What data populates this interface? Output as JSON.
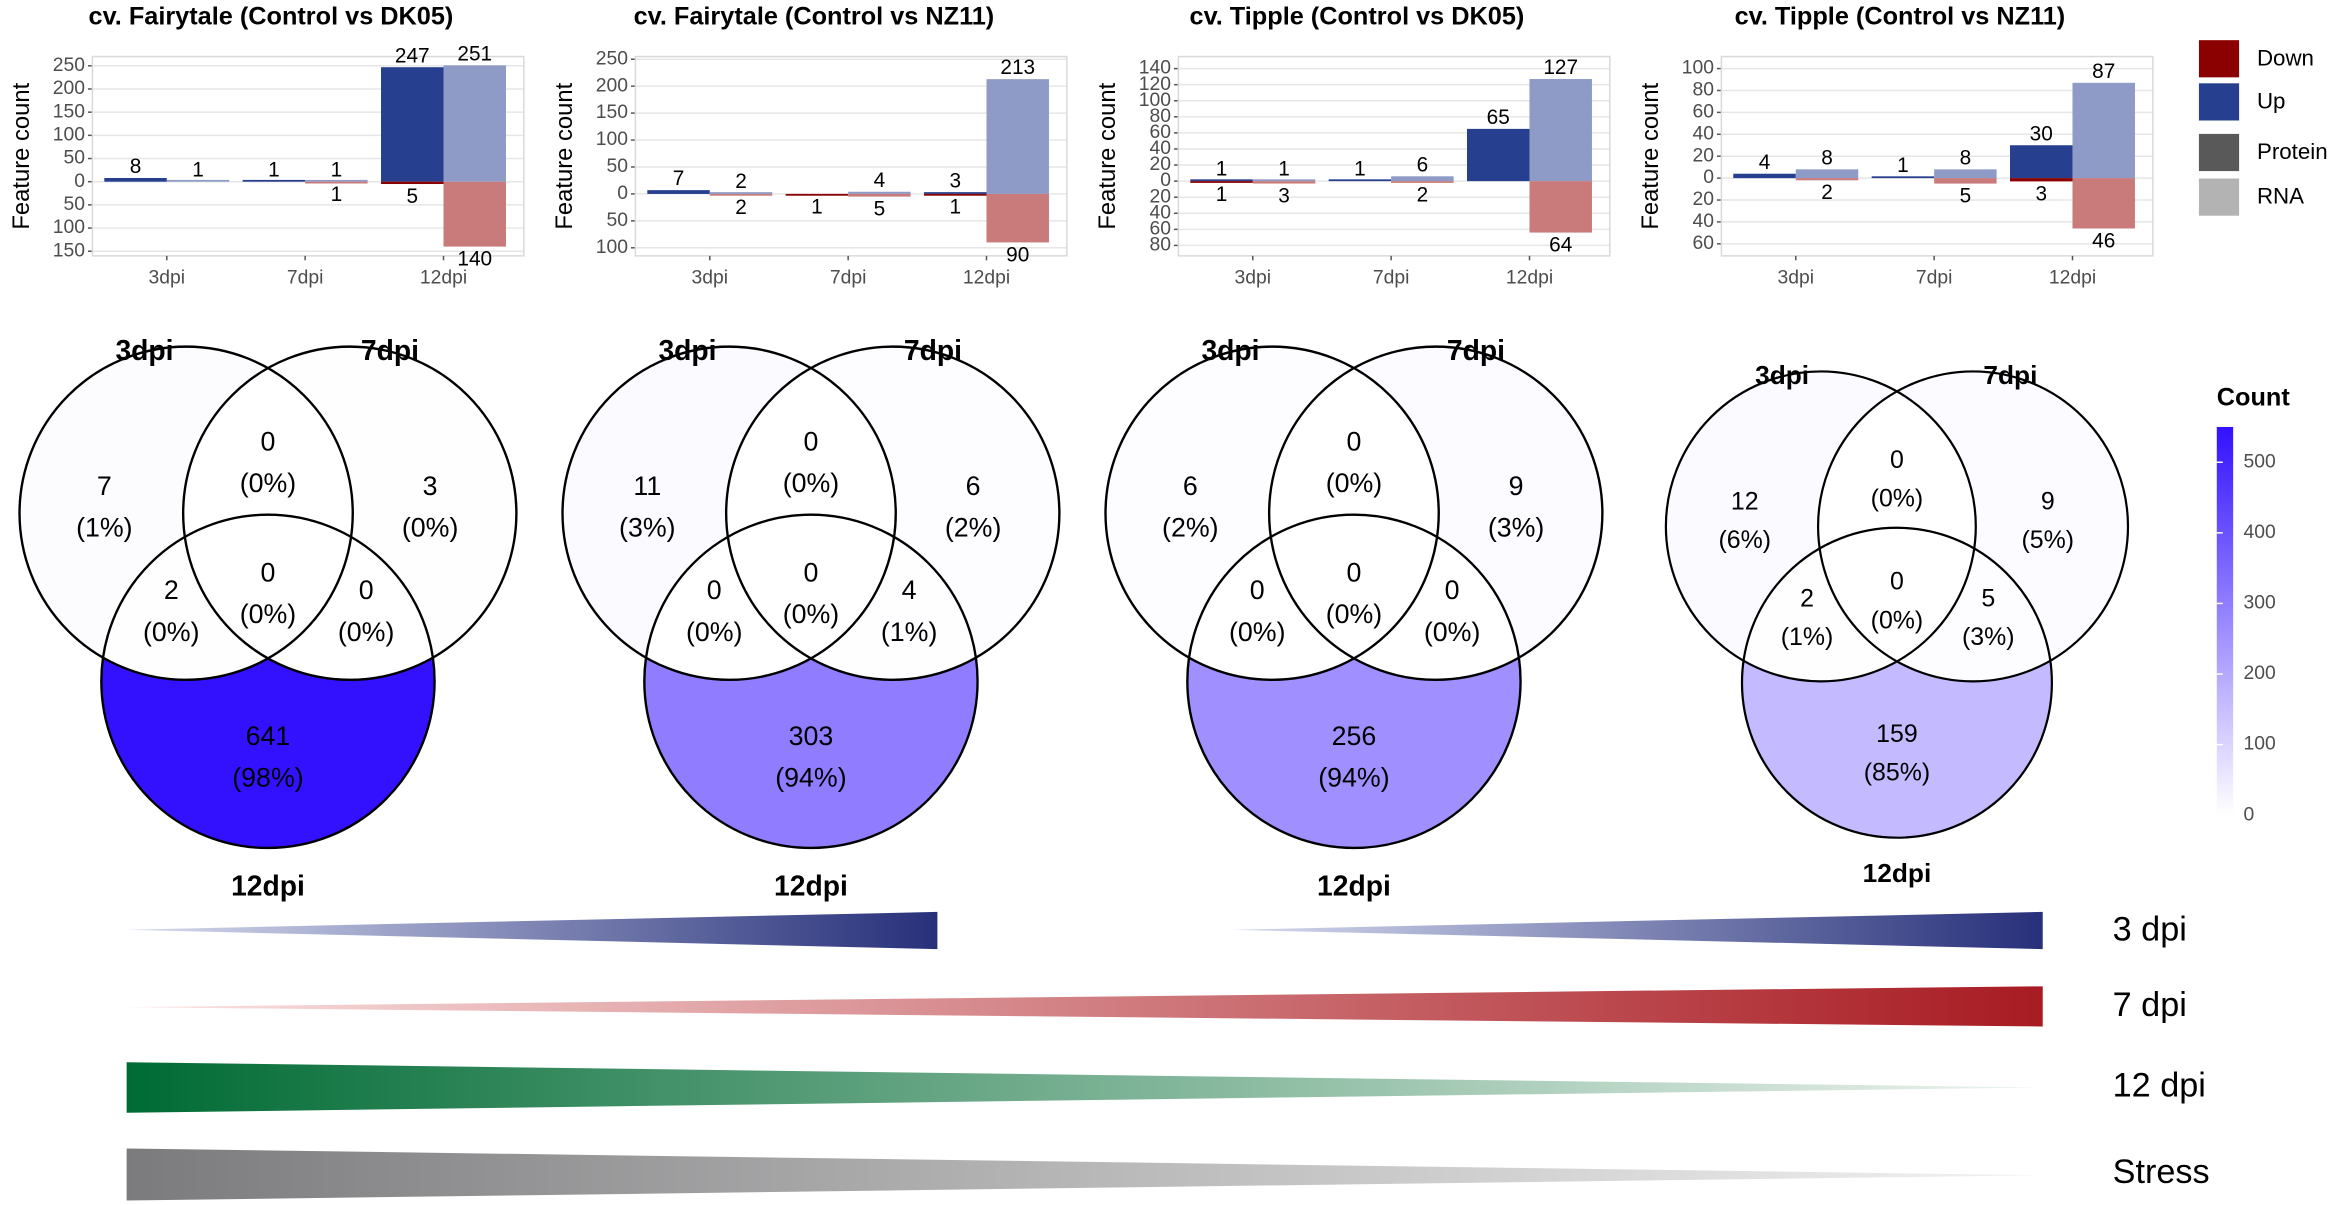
{
  "legend": [
    {
      "name": "Down",
      "color": "#8b0000"
    },
    {
      "name": "Up",
      "color": "#263f8e"
    },
    {
      "name": "Protein",
      "color": "#595959"
    },
    {
      "name": "RNA",
      "color": "#b3b3b3"
    }
  ],
  "chart_data": [
    {
      "type": "bar",
      "title": "cv. Fairytale (Control vs DK05)",
      "ylabel": "Feature count",
      "categories": [
        "3dpi",
        "7dpi",
        "12dpi"
      ],
      "ylim": [
        -160,
        270
      ],
      "yticks": [
        250,
        200,
        150,
        100,
        50,
        0,
        {
          "value": -50,
          "label": "50"
        },
        {
          "value": -100,
          "label": "100"
        },
        {
          "value": -150,
          "label": "150"
        }
      ],
      "series": [
        {
          "color": "#263f8e",
          "values": [
            8,
            1,
            247
          ]
        },
        {
          "color": "#8e9bc6",
          "values": [
            1,
            1,
            251
          ]
        },
        {
          "color": "#8b0000",
          "values": [
            null,
            null,
            -5
          ],
          "value_labels": [
            null,
            null,
            "5"
          ]
        },
        {
          "color": "#c97b7b",
          "values": [
            null,
            -1,
            -140
          ],
          "value_labels": [
            null,
            "1",
            "140"
          ]
        }
      ]
    },
    {
      "type": "bar",
      "title": "cv. Fairytale (Control vs NZ11)",
      "ylabel": "Feature count",
      "categories": [
        "3dpi",
        "7dpi",
        "12dpi"
      ],
      "ylim": [
        -115,
        255
      ],
      "yticks": [
        250,
        200,
        150,
        100,
        50,
        0,
        {
          "value": -50,
          "label": "50"
        },
        {
          "value": -100,
          "label": "100"
        }
      ],
      "series": [
        {
          "color": "#263f8e",
          "values": [
            7,
            null,
            3
          ]
        },
        {
          "color": "#8e9bc6",
          "values": [
            2,
            4,
            213
          ]
        },
        {
          "color": "#8b0000",
          "values": [
            null,
            -1,
            -1
          ],
          "value_labels": [
            null,
            "1",
            "1"
          ]
        },
        {
          "color": "#c97b7b",
          "values": [
            -2,
            -5,
            -90
          ],
          "value_labels": [
            "2",
            "5",
            "90"
          ]
        }
      ]
    },
    {
      "type": "bar",
      "title": "cv. Tipple (Control vs DK05)",
      "ylabel": "Feature count",
      "categories": [
        "3dpi",
        "7dpi",
        "12dpi"
      ],
      "ylim": [
        -93,
        155
      ],
      "yticks": [
        140,
        120,
        100,
        80,
        60,
        40,
        20,
        0,
        {
          "value": -20,
          "label": "20"
        },
        {
          "value": -40,
          "label": "40"
        },
        {
          "value": -60,
          "label": "60"
        },
        {
          "value": -80,
          "label": "80"
        }
      ],
      "series": [
        {
          "color": "#263f8e",
          "values": [
            1,
            1,
            65
          ]
        },
        {
          "color": "#8e9bc6",
          "values": [
            1,
            6,
            127
          ]
        },
        {
          "color": "#8b0000",
          "values": [
            -1,
            null,
            null
          ],
          "value_labels": [
            "1",
            null,
            null
          ]
        },
        {
          "color": "#c97b7b",
          "values": [
            -3,
            -2,
            -64
          ],
          "value_labels": [
            "3",
            "2",
            "64"
          ]
        }
      ]
    },
    {
      "type": "bar",
      "title": "cv. Tipple (Control vs NZ11)",
      "ylabel": "Feature count",
      "categories": [
        "3dpi",
        "7dpi",
        "12dpi"
      ],
      "ylim": [
        -71,
        111
      ],
      "yticks": [
        100,
        80,
        60,
        40,
        20,
        0,
        {
          "value": -20,
          "label": "20"
        },
        {
          "value": -40,
          "label": "40"
        },
        {
          "value": -60,
          "label": "60"
        }
      ],
      "series": [
        {
          "color": "#263f8e",
          "values": [
            4,
            1,
            30
          ]
        },
        {
          "color": "#8e9bc6",
          "values": [
            8,
            8,
            87
          ]
        },
        {
          "color": "#8b0000",
          "values": [
            null,
            null,
            -3
          ],
          "value_labels": [
            null,
            null,
            "3"
          ]
        },
        {
          "color": "#c97b7b",
          "values": [
            -2,
            -5,
            -46
          ],
          "value_labels": [
            "2",
            "5",
            "46"
          ]
        }
      ]
    },
    {
      "type": "venn",
      "sets": [
        "3dpi",
        "7dpi",
        "12dpi"
      ],
      "values": [
        7,
        3,
        0,
        2,
        0,
        0,
        641
      ],
      "percents": [
        1,
        0,
        0,
        0,
        0,
        0,
        98
      ],
      "percent_labels": [
        "(1%)",
        "(0%)",
        "(0%)",
        "(0%)",
        "(0%)",
        "(0%)",
        "(98%)"
      ]
    },
    {
      "type": "venn",
      "sets": [
        "3dpi",
        "7dpi",
        "12dpi"
      ],
      "values": [
        11,
        6,
        0,
        0,
        0,
        4,
        303
      ],
      "percents": [
        3,
        2,
        0,
        0,
        0,
        1,
        94
      ],
      "percent_labels": [
        "(3%)",
        "(2%)",
        "(0%)",
        "(0%)",
        "(0%)",
        "(1%)",
        "(94%)"
      ]
    },
    {
      "type": "venn",
      "sets": [
        "3dpi",
        "7dpi",
        "12dpi"
      ],
      "values": [
        6,
        9,
        0,
        0,
        0,
        0,
        256
      ],
      "percents": [
        2,
        3,
        0,
        0,
        0,
        0,
        94
      ],
      "percent_labels": [
        "(2%)",
        "(3%)",
        "(0%)",
        "(0%)",
        "(0%)",
        "(0%)",
        "(94%)"
      ]
    },
    {
      "type": "venn",
      "sets": [
        "3dpi",
        "7dpi",
        "12dpi"
      ],
      "values": [
        12,
        9,
        0,
        2,
        0,
        5,
        159
      ],
      "percents": [
        6,
        5,
        0,
        1,
        0,
        3,
        85
      ],
      "percent_labels": [
        "(6%)",
        "(5%)",
        "(0%)",
        "(1%)",
        "(0%)",
        "(3%)",
        "(85%)"
      ]
    }
  ],
  "colorbar": {
    "title": "Count",
    "lim": [
      0,
      550
    ],
    "ticks": [
      0,
      100,
      200,
      300,
      400,
      500
    ],
    "colors": [
      "#ffffff",
      "#3311ff"
    ]
  },
  "gradients": [
    {
      "label": "3 dpi"
    },
    {
      "label": "7 dpi"
    },
    {
      "label": "12 dpi"
    },
    {
      "label": "Stress"
    }
  ]
}
